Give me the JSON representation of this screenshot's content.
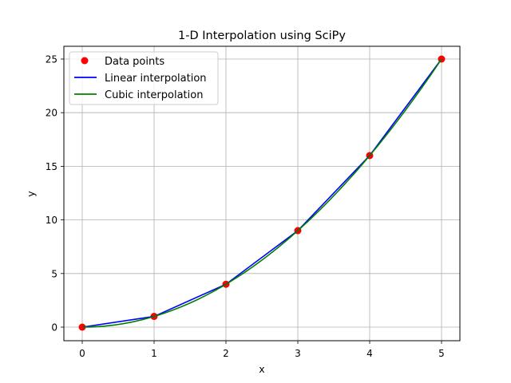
{
  "chart_data": {
    "type": "line",
    "title": "1-D Interpolation using SciPy",
    "xlabel": "x",
    "ylabel": "y",
    "xlim": [
      -0.25,
      5.25
    ],
    "ylim": [
      -1.25,
      26.25
    ],
    "xticks": [
      0,
      1,
      2,
      3,
      4,
      5
    ],
    "yticks": [
      0,
      5,
      10,
      15,
      20,
      25
    ],
    "grid": true,
    "legend_position": "upper left",
    "series": [
      {
        "name": "Data points",
        "kind": "scatter",
        "color": "#ff0000",
        "x": [
          0,
          1,
          2,
          3,
          4,
          5
        ],
        "y": [
          0,
          1,
          4,
          9,
          16,
          25
        ]
      },
      {
        "name": "Linear interpolation",
        "kind": "line",
        "color": "#0000ff",
        "x": [
          0,
          1,
          2,
          3,
          4,
          5
        ],
        "y": [
          0,
          1,
          4,
          9,
          16,
          25
        ]
      },
      {
        "name": "Cubic interpolation",
        "kind": "line",
        "color": "#008000",
        "function": "x^2",
        "x_range": [
          0,
          5
        ]
      }
    ]
  },
  "legend": {
    "items": [
      {
        "label": "Data points",
        "color": "#ff0000",
        "marker": "circle"
      },
      {
        "label": "Linear interpolation",
        "color": "#0000ff",
        "marker": "line"
      },
      {
        "label": "Cubic interpolation",
        "color": "#008000",
        "marker": "line"
      }
    ]
  }
}
